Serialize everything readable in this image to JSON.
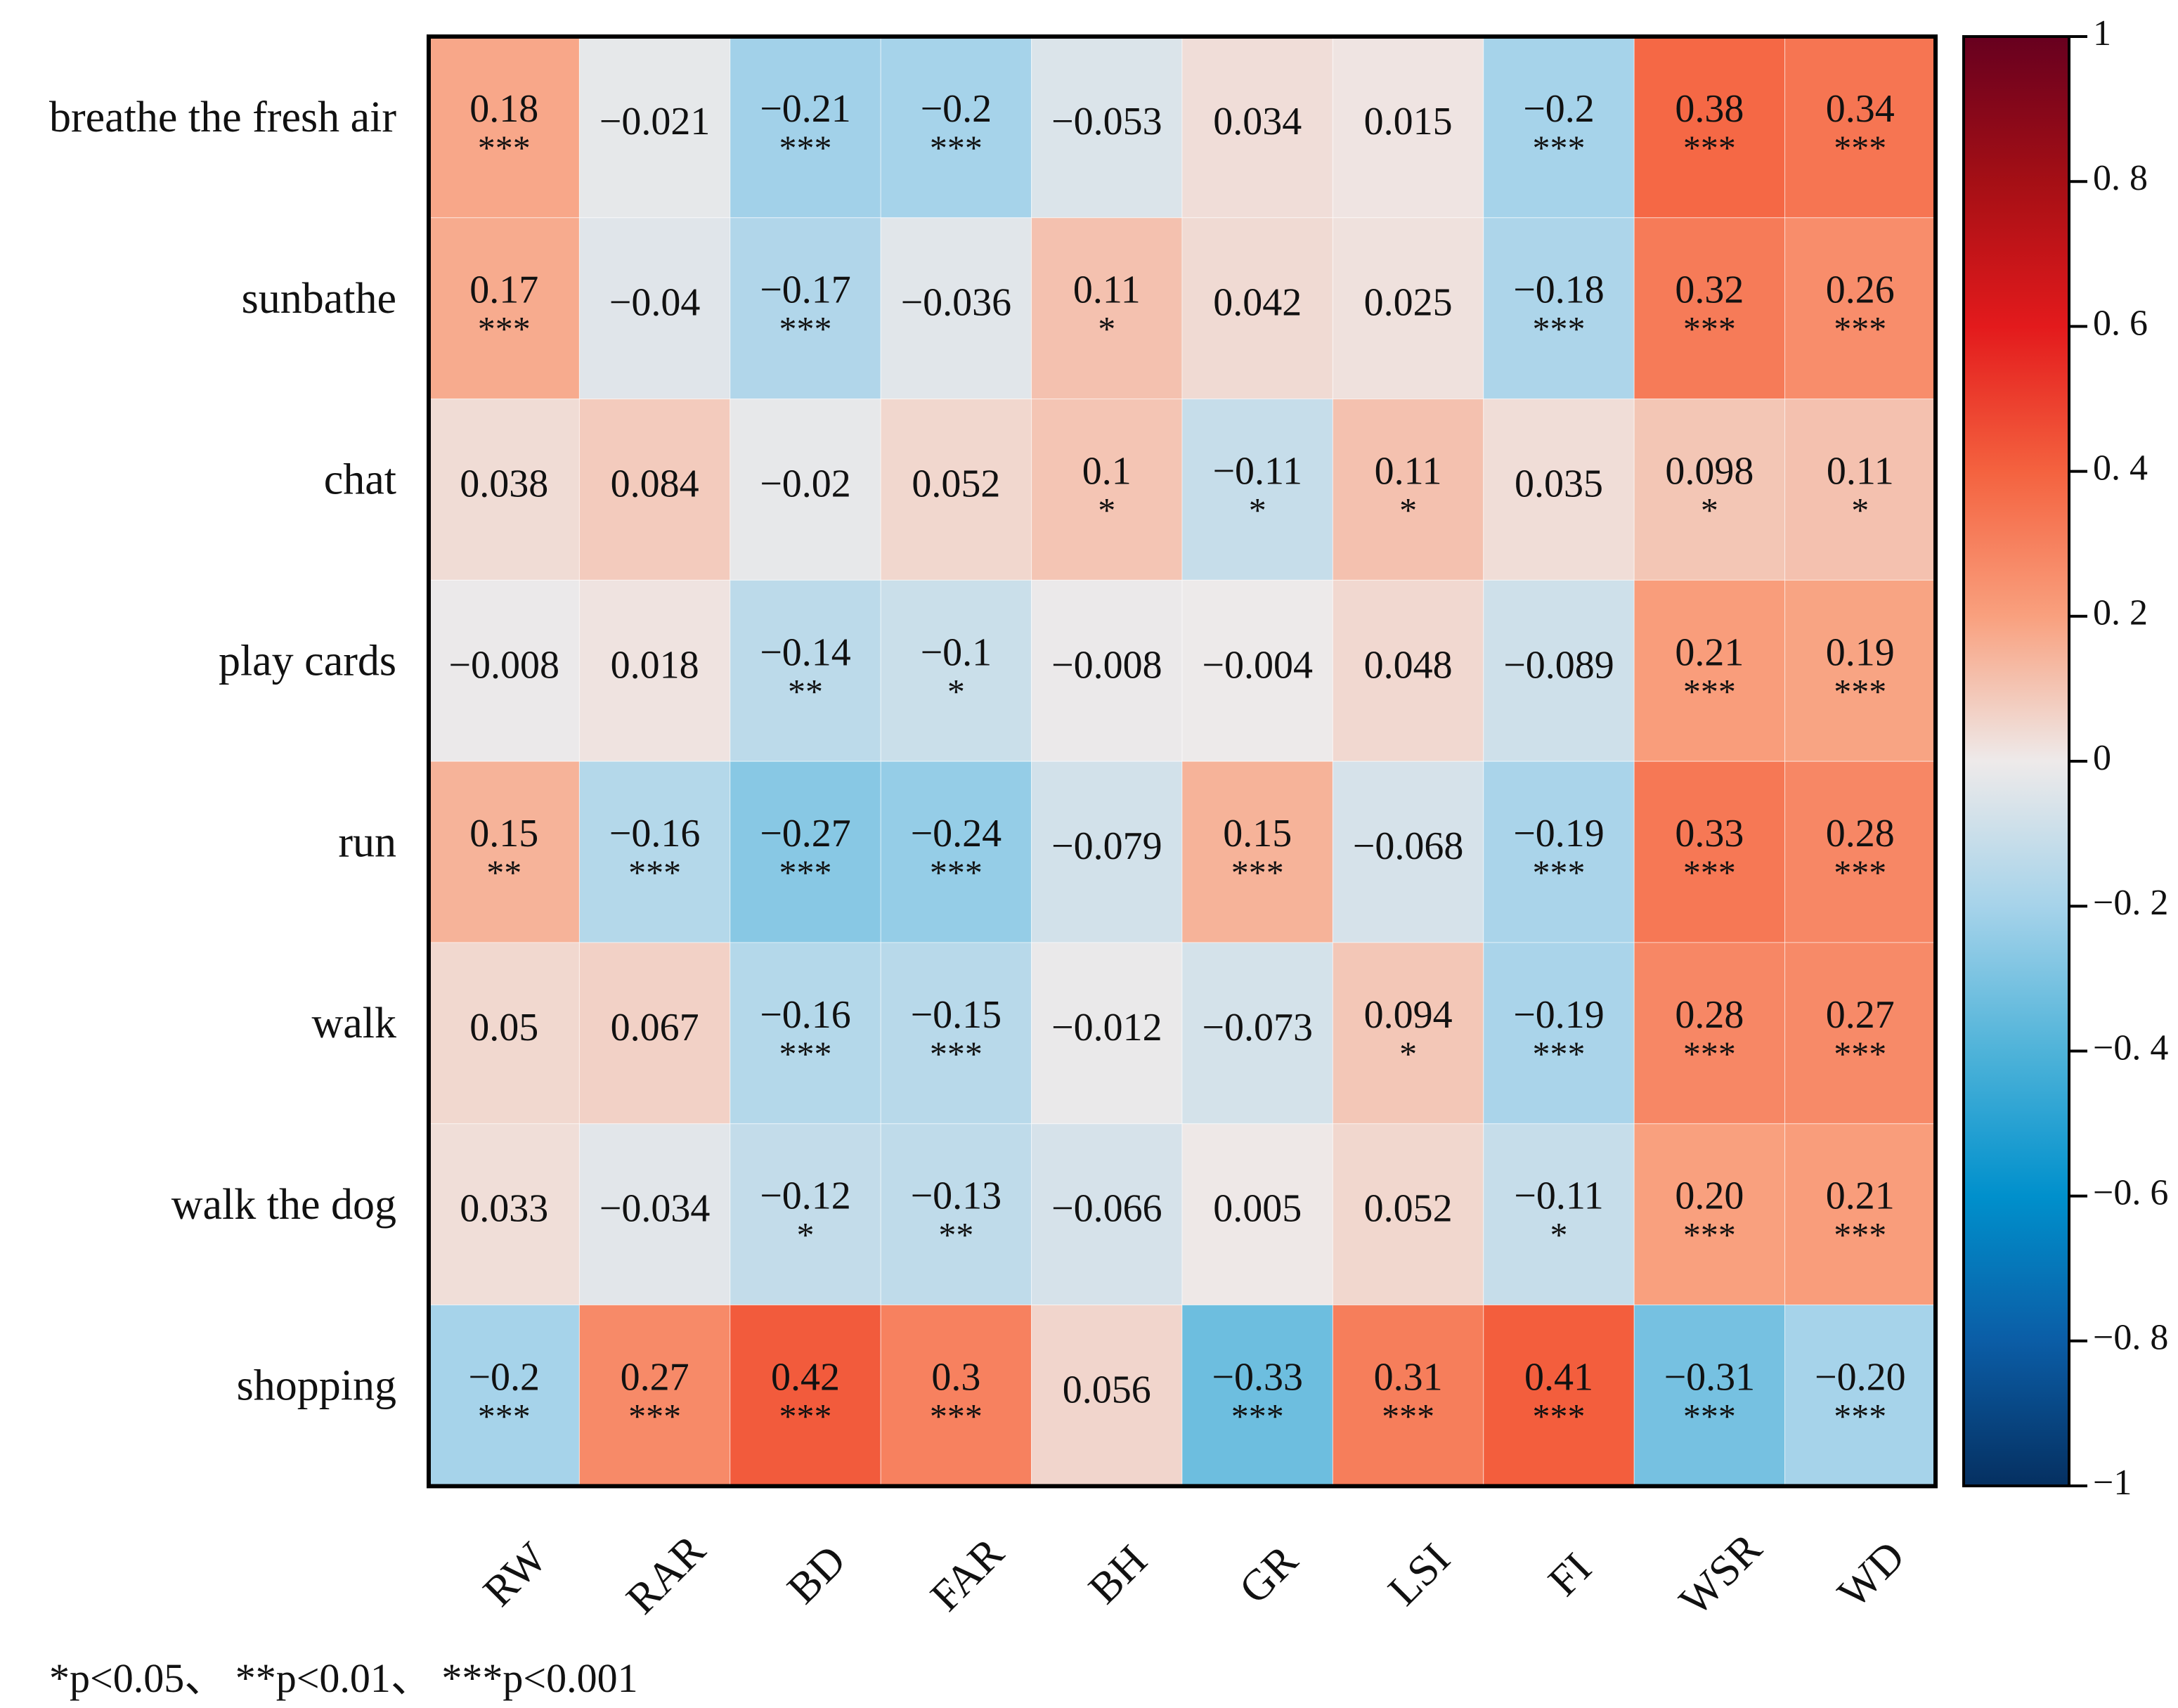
{
  "chart_data": {
    "type": "heatmap",
    "title": "",
    "rows": [
      "breathe the fresh air",
      "sunbathe",
      "chat",
      "play cards",
      "run",
      "walk",
      "walk the dog",
      "shopping"
    ],
    "columns": [
      "RW",
      "RAR",
      "BD",
      "FAR",
      "BH",
      "GR",
      "LSI",
      "FI",
      "WSR",
      "WD"
    ],
    "values": [
      [
        0.18,
        -0.021,
        -0.21,
        -0.2,
        -0.053,
        0.034,
        0.015,
        -0.2,
        0.38,
        0.34
      ],
      [
        0.17,
        -0.04,
        -0.17,
        -0.036,
        0.11,
        0.042,
        0.025,
        -0.18,
        0.32,
        0.26
      ],
      [
        0.038,
        0.084,
        -0.02,
        0.052,
        0.1,
        -0.11,
        0.11,
        0.035,
        0.098,
        0.11
      ],
      [
        -0.008,
        0.018,
        -0.14,
        -0.1,
        -0.008,
        -0.004,
        0.048,
        -0.089,
        0.21,
        0.19
      ],
      [
        0.15,
        -0.16,
        -0.27,
        -0.24,
        -0.079,
        0.15,
        -0.068,
        -0.19,
        0.33,
        0.28
      ],
      [
        0.05,
        0.067,
        -0.16,
        -0.15,
        -0.012,
        -0.073,
        0.094,
        -0.19,
        0.28,
        0.27
      ],
      [
        0.033,
        -0.034,
        -0.12,
        -0.13,
        -0.066,
        0.005,
        0.052,
        -0.11,
        0.2,
        0.21
      ],
      [
        -0.2,
        0.27,
        0.42,
        0.3,
        0.056,
        -0.33,
        0.31,
        0.41,
        -0.31,
        -0.2
      ]
    ],
    "value_labels": [
      [
        "0.18",
        "−0.021",
        "−0.21",
        "−0.2",
        "−0.053",
        "0.034",
        "0.015",
        "−0.2",
        "0.38",
        "0.34"
      ],
      [
        "0.17",
        "−0.04",
        "−0.17",
        "−0.036",
        "0.11",
        "0.042",
        "0.025",
        "−0.18",
        "0.32",
        "0.26"
      ],
      [
        "0.038",
        "0.084",
        "−0.02",
        "0.052",
        "0.1",
        "−0.11",
        "0.11",
        "0.035",
        "0.098",
        "0.11"
      ],
      [
        "−0.008",
        "0.018",
        "−0.14",
        "−0.1",
        "−0.008",
        "−0.004",
        "0.048",
        "−0.089",
        "0.21",
        "0.19"
      ],
      [
        "0.15",
        "−0.16",
        "−0.27",
        "−0.24",
        "−0.079",
        "0.15",
        "−0.068",
        "−0.19",
        "0.33",
        "0.28"
      ],
      [
        "0.05",
        "0.067",
        "−0.16",
        "−0.15",
        "−0.012",
        "−0.073",
        "0.094",
        "−0.19",
        "0.28",
        "0.27"
      ],
      [
        "0.033",
        "−0.034",
        "−0.12",
        "−0.13",
        "−0.066",
        "0.005",
        "0.052",
        "−0.11",
        "0.20",
        "0.21"
      ],
      [
        "−0.2",
        "0.27",
        "0.42",
        "0.3",
        "0.056",
        "−0.33",
        "0.31",
        "0.41",
        "−0.31",
        "−0.20"
      ]
    ],
    "significance": [
      [
        "***",
        "",
        "***",
        "***",
        "",
        "",
        "",
        "***",
        "***",
        "***"
      ],
      [
        "***",
        "",
        "***",
        "",
        "*",
        "",
        "",
        "***",
        "***",
        "***"
      ],
      [
        "",
        "",
        "",
        "",
        "*",
        "*",
        "*",
        "",
        "*",
        "*"
      ],
      [
        "",
        "",
        "**",
        "*",
        "",
        "",
        "",
        "",
        "***",
        "***"
      ],
      [
        "**",
        "***",
        "***",
        "***",
        "",
        "***",
        "",
        "***",
        "***",
        "***"
      ],
      [
        "",
        "",
        "***",
        "***",
        "",
        "",
        "*",
        "***",
        "***",
        "***"
      ],
      [
        "",
        "",
        "*",
        "**",
        "",
        "",
        "",
        "*",
        "***",
        "***"
      ],
      [
        "***",
        "***",
        "***",
        "***",
        "",
        "***",
        "***",
        "***",
        "***",
        "***"
      ]
    ],
    "colorbar": {
      "min": -1,
      "max": 1,
      "ticks": [
        1,
        0.8,
        0.6,
        0.4,
        0.2,
        0,
        -0.2,
        -0.4,
        -0.6,
        -0.8,
        -1
      ],
      "tick_labels": [
        "1",
        "0. 8",
        "0. 6",
        "0. 4",
        "0. 2",
        "0",
        "−0. 2",
        "−0. 4",
        "−0. 6",
        "−0. 8",
        "−1"
      ],
      "colormap": "RdBu_r"
    },
    "xlabel": "",
    "ylabel": "",
    "legend_note": "*p<0.05、 **p<0.01、 ***p<0.001"
  }
}
